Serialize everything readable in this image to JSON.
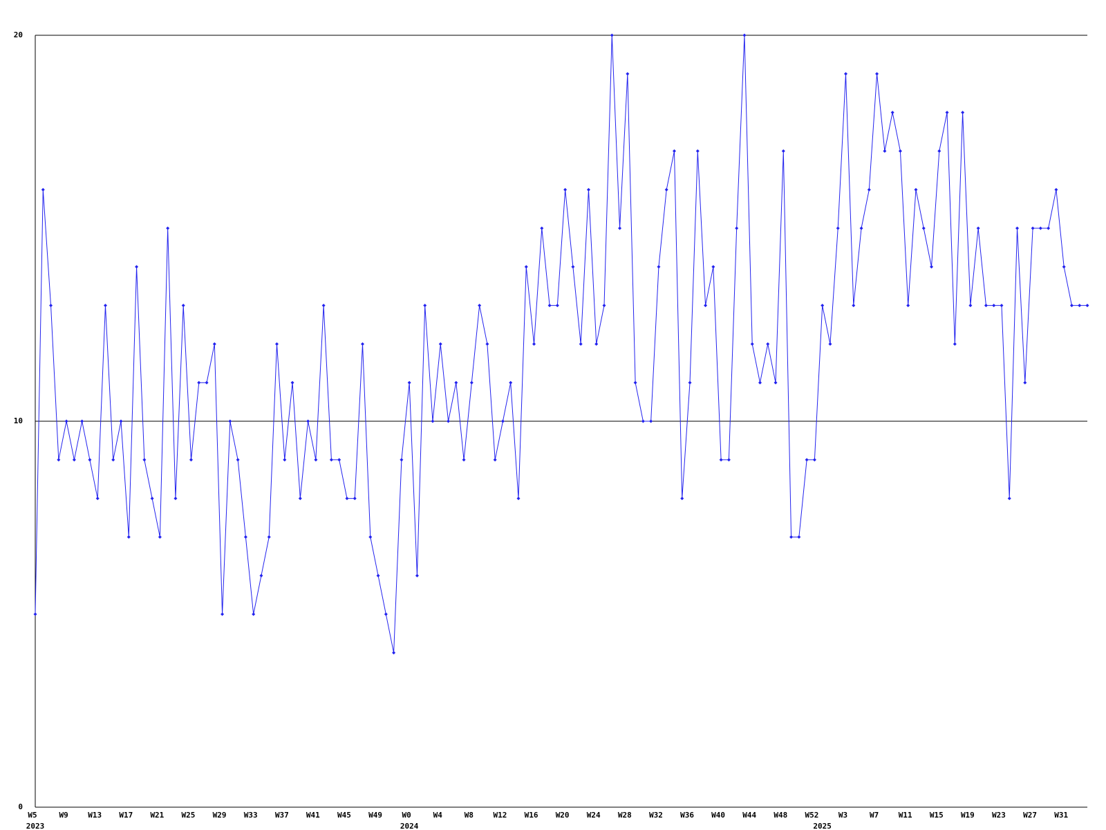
{
  "chart_data": {
    "type": "line",
    "color": "#2222ee",
    "grid": true,
    "ylim": [
      0,
      20
    ],
    "yticks": [
      0,
      10,
      20
    ],
    "categories": [
      "W5",
      null,
      null,
      null,
      "W9",
      null,
      null,
      null,
      "W13",
      null,
      null,
      null,
      "W17",
      null,
      null,
      null,
      "W21",
      null,
      null,
      null,
      "W25",
      null,
      null,
      null,
      "W29",
      null,
      null,
      null,
      "W33",
      null,
      null,
      null,
      "W37",
      null,
      null,
      null,
      "W41",
      null,
      null,
      null,
      "W45",
      null,
      null,
      null,
      "W49",
      null,
      null,
      null,
      "W0",
      null,
      null,
      null,
      "W4",
      null,
      null,
      null,
      "W8",
      null,
      null,
      null,
      "W12",
      null,
      null,
      null,
      "W16",
      null,
      null,
      null,
      "W20",
      null,
      null,
      null,
      "W24",
      null,
      null,
      null,
      "W28",
      null,
      null,
      null,
      "W32",
      null,
      null,
      null,
      "W36",
      null,
      null,
      null,
      "W40",
      null,
      null,
      null,
      "W44",
      null,
      null,
      null,
      "W48",
      null,
      null,
      null,
      "W52",
      null,
      null,
      null,
      "W3",
      null,
      null,
      null,
      "W7",
      null,
      null,
      null,
      "W11",
      null,
      null,
      null,
      "W15",
      null,
      null,
      null,
      "W19",
      null,
      null,
      null,
      "W23",
      null,
      null,
      null,
      "W27",
      null,
      null,
      null,
      "W31",
      null,
      null,
      null
    ],
    "year_labels": [
      "2023",
      null,
      null,
      null,
      null,
      null,
      null,
      null,
      null,
      null,
      null,
      null,
      null,
      null,
      null,
      null,
      null,
      null,
      null,
      null,
      null,
      null,
      null,
      null,
      null,
      null,
      null,
      null,
      null,
      null,
      null,
      null,
      null,
      null,
      null,
      null,
      null,
      null,
      null,
      null,
      null,
      null,
      null,
      null,
      null,
      null,
      null,
      null,
      "2024",
      null,
      null,
      null,
      null,
      null,
      null,
      null,
      null,
      null,
      null,
      null,
      null,
      null,
      null,
      null,
      null,
      null,
      null,
      null,
      null,
      null,
      null,
      null,
      null,
      null,
      null,
      null,
      null,
      null,
      null,
      null,
      null,
      null,
      null,
      null,
      null,
      null,
      null,
      null,
      null,
      null,
      null,
      null,
      null,
      null,
      null,
      null,
      null,
      null,
      null,
      null,
      null,
      "2025",
      null,
      null,
      null,
      null,
      null,
      null,
      null,
      null,
      null,
      null,
      null,
      null,
      null,
      null,
      null,
      null,
      null,
      null,
      null,
      null,
      null,
      null,
      null,
      null,
      null,
      null,
      null,
      null,
      null,
      null,
      null,
      null,
      null,
      null
    ],
    "values": [
      5,
      16,
      13,
      9,
      10,
      9,
      10,
      9,
      8,
      13,
      9,
      10,
      7,
      14,
      9,
      8,
      7,
      15,
      8,
      13,
      9,
      11,
      11,
      12,
      5,
      10,
      9,
      7,
      5,
      6,
      7,
      12,
      9,
      11,
      8,
      10,
      9,
      13,
      9,
      9,
      8,
      8,
      12,
      7,
      6,
      5,
      4,
      9,
      11,
      6,
      13,
      10,
      12,
      10,
      11,
      9,
      11,
      13,
      12,
      9,
      10,
      11,
      8,
      14,
      12,
      15,
      13,
      13,
      16,
      14,
      12,
      16,
      12,
      13,
      20,
      15,
      19,
      11,
      10,
      10,
      14,
      16,
      17,
      8,
      11,
      17,
      13,
      14,
      9,
      9,
      15,
      20,
      12,
      11,
      12,
      11,
      17,
      7,
      7,
      9,
      9,
      13,
      12,
      15,
      19,
      13,
      15,
      16,
      19,
      17,
      18,
      17,
      13,
      16,
      15,
      14,
      17,
      18,
      12,
      18,
      13,
      15,
      13,
      13,
      13,
      8,
      15,
      11,
      15,
      15,
      15,
      16,
      14,
      13,
      13,
      13
    ]
  }
}
